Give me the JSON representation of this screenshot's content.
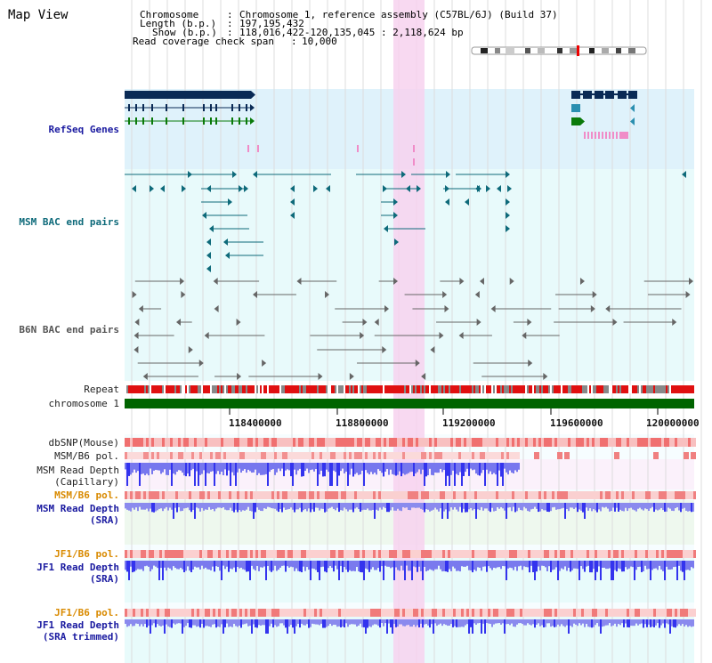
{
  "page_title": "Map View",
  "header": {
    "chromosome_label": "Chromosome",
    "chromosome_value": "Chromosome 1, reference assembly (C57BL/6J) (Build 37)",
    "length_label": "Length (b.p.)",
    "length_value": "197,195,432",
    "show_label": "Show (b.p.)",
    "show_value": "118,016,422-120,135,045 : 2,118,624 bp",
    "span_label": "Read coverage check span",
    "span_value": "10,000"
  },
  "tracks": {
    "refseq": "RefSeq Genes",
    "msm_bac": "MSM BAC end pairs",
    "b6n_bac": "B6N BAC end pairs",
    "repeat": "Repeat",
    "chromosome": "chromosome 1",
    "dbsnp": "dbSNP(Mouse)",
    "msm_b6_pol_1": "MSM/B6 pol.",
    "msm_read_depth_cap_1": "MSM Read Depth",
    "msm_read_depth_cap_2": "(Capillary)",
    "msm_b6_pol_2": "MSM/B6 pol.",
    "msm_read_depth_sra_1": "MSM Read Depth",
    "msm_read_depth_sra_2": "(SRA)",
    "jf1_b6_pol_1": "JF1/B6 pol.",
    "jf1_read_depth_1": "JF1 Read Depth",
    "jf1_read_depth_2": "(SRA)",
    "jf1_b6_pol_2": "JF1/B6 pol.",
    "jf1_trim_1": "JF1 Read Depth",
    "jf1_trim_2": "(SRA trimmed)"
  },
  "axis_ticks": [
    "118400000",
    "118800000",
    "119200000",
    "119600000",
    "120000000"
  ],
  "colors": {
    "refseq_bg": "#dff2fb",
    "bac_bg": "#e8fafb",
    "highlight": "#f7d2ef",
    "repeat_red": "#e01010",
    "repeat_grey": "#888888",
    "chromosome_green": "#006400",
    "depth_blue": "#3333ee",
    "depth_light": "#7777ee",
    "gene_dark": "#0a2a55",
    "gene_teal": "#2a8fb0",
    "gene_green": "#0a7a0a",
    "bac_teal": "#0e6a7a",
    "bac_grey": "#666666",
    "pol_orange": "#d98a00"
  }
}
